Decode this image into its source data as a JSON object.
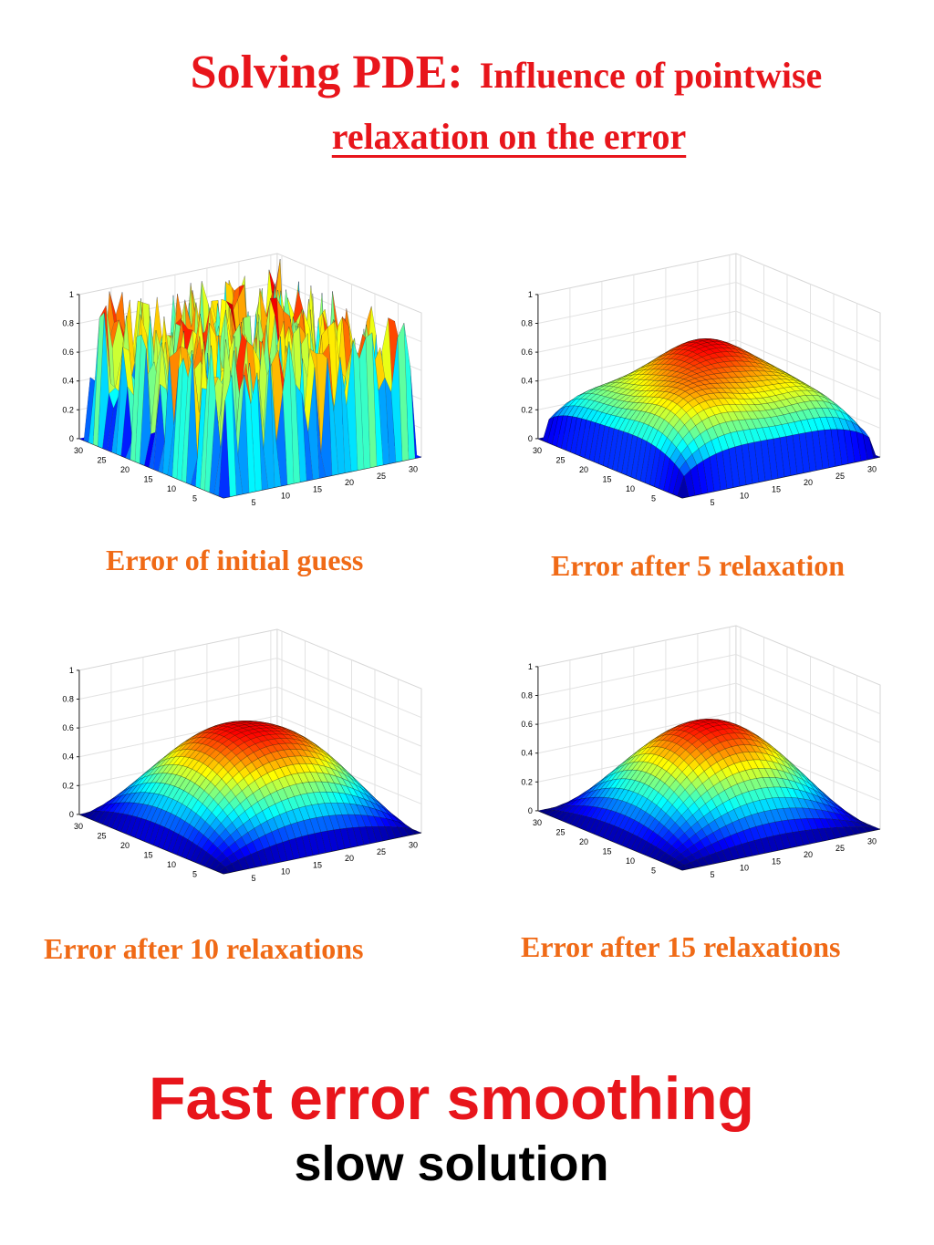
{
  "title": {
    "main": "Solving PDE:",
    "subtitle_line1": "Influence of pointwise",
    "subtitle_line2": "relaxation on the error"
  },
  "footer": {
    "headline": "Fast error smoothing",
    "subline": "slow solution"
  },
  "colors": {
    "title": "#e8151b",
    "caption": "#f06a16",
    "footer_sub": "#000000"
  },
  "chart_data": [
    {
      "type": "surface",
      "caption": "Error of initial guess",
      "surface": "random",
      "grid": true,
      "colormap": "jet",
      "zlim": [
        0,
        1
      ],
      "xlim": [
        0,
        31
      ],
      "ylim": [
        0,
        31
      ],
      "z_ticks": [
        "0",
        "0.2",
        "0.4",
        "0.6",
        "0.8",
        "1"
      ],
      "x_ticks": [
        "5",
        "10",
        "15",
        "20",
        "25",
        "30"
      ],
      "y_ticks": [
        "5",
        "10",
        "15",
        "20",
        "25",
        "30"
      ]
    },
    {
      "type": "surface",
      "caption": "Error after 5 relaxation",
      "surface": "bumpy-dome",
      "grid": true,
      "colormap": "jet",
      "zlim": [
        0,
        1
      ],
      "xlim": [
        0,
        31
      ],
      "ylim": [
        0,
        31
      ],
      "z_ticks": [
        "0",
        "0.2",
        "0.4",
        "0.6",
        "0.8",
        "1"
      ],
      "x_ticks": [
        "5",
        "10",
        "15",
        "20",
        "25",
        "30"
      ],
      "y_ticks": [
        "5",
        "10",
        "15",
        "20",
        "25",
        "30"
      ]
    },
    {
      "type": "surface",
      "caption": "Error after 10 relaxations",
      "surface": "smooth-dome",
      "grid": true,
      "colormap": "jet",
      "zlim": [
        0,
        1
      ],
      "xlim": [
        0,
        31
      ],
      "ylim": [
        0,
        31
      ],
      "z_ticks": [
        "0",
        "0.2",
        "0.4",
        "0.6",
        "0.8",
        "1"
      ],
      "x_ticks": [
        "5",
        "10",
        "15",
        "20",
        "25",
        "30"
      ],
      "y_ticks": [
        "5",
        "10",
        "15",
        "20",
        "25",
        "30"
      ]
    },
    {
      "type": "surface",
      "caption": "Error after 15 relaxations",
      "surface": "smoothest-dome",
      "grid": true,
      "colormap": "jet",
      "zlim": [
        0,
        1
      ],
      "xlim": [
        0,
        31
      ],
      "ylim": [
        0,
        31
      ],
      "z_ticks": [
        "0",
        "0.2",
        "0.4",
        "0.6",
        "0.8",
        "1"
      ],
      "x_ticks": [
        "5",
        "10",
        "15",
        "20",
        "25",
        "30"
      ],
      "y_ticks": [
        "5",
        "10",
        "15",
        "20",
        "25",
        "30"
      ]
    }
  ]
}
